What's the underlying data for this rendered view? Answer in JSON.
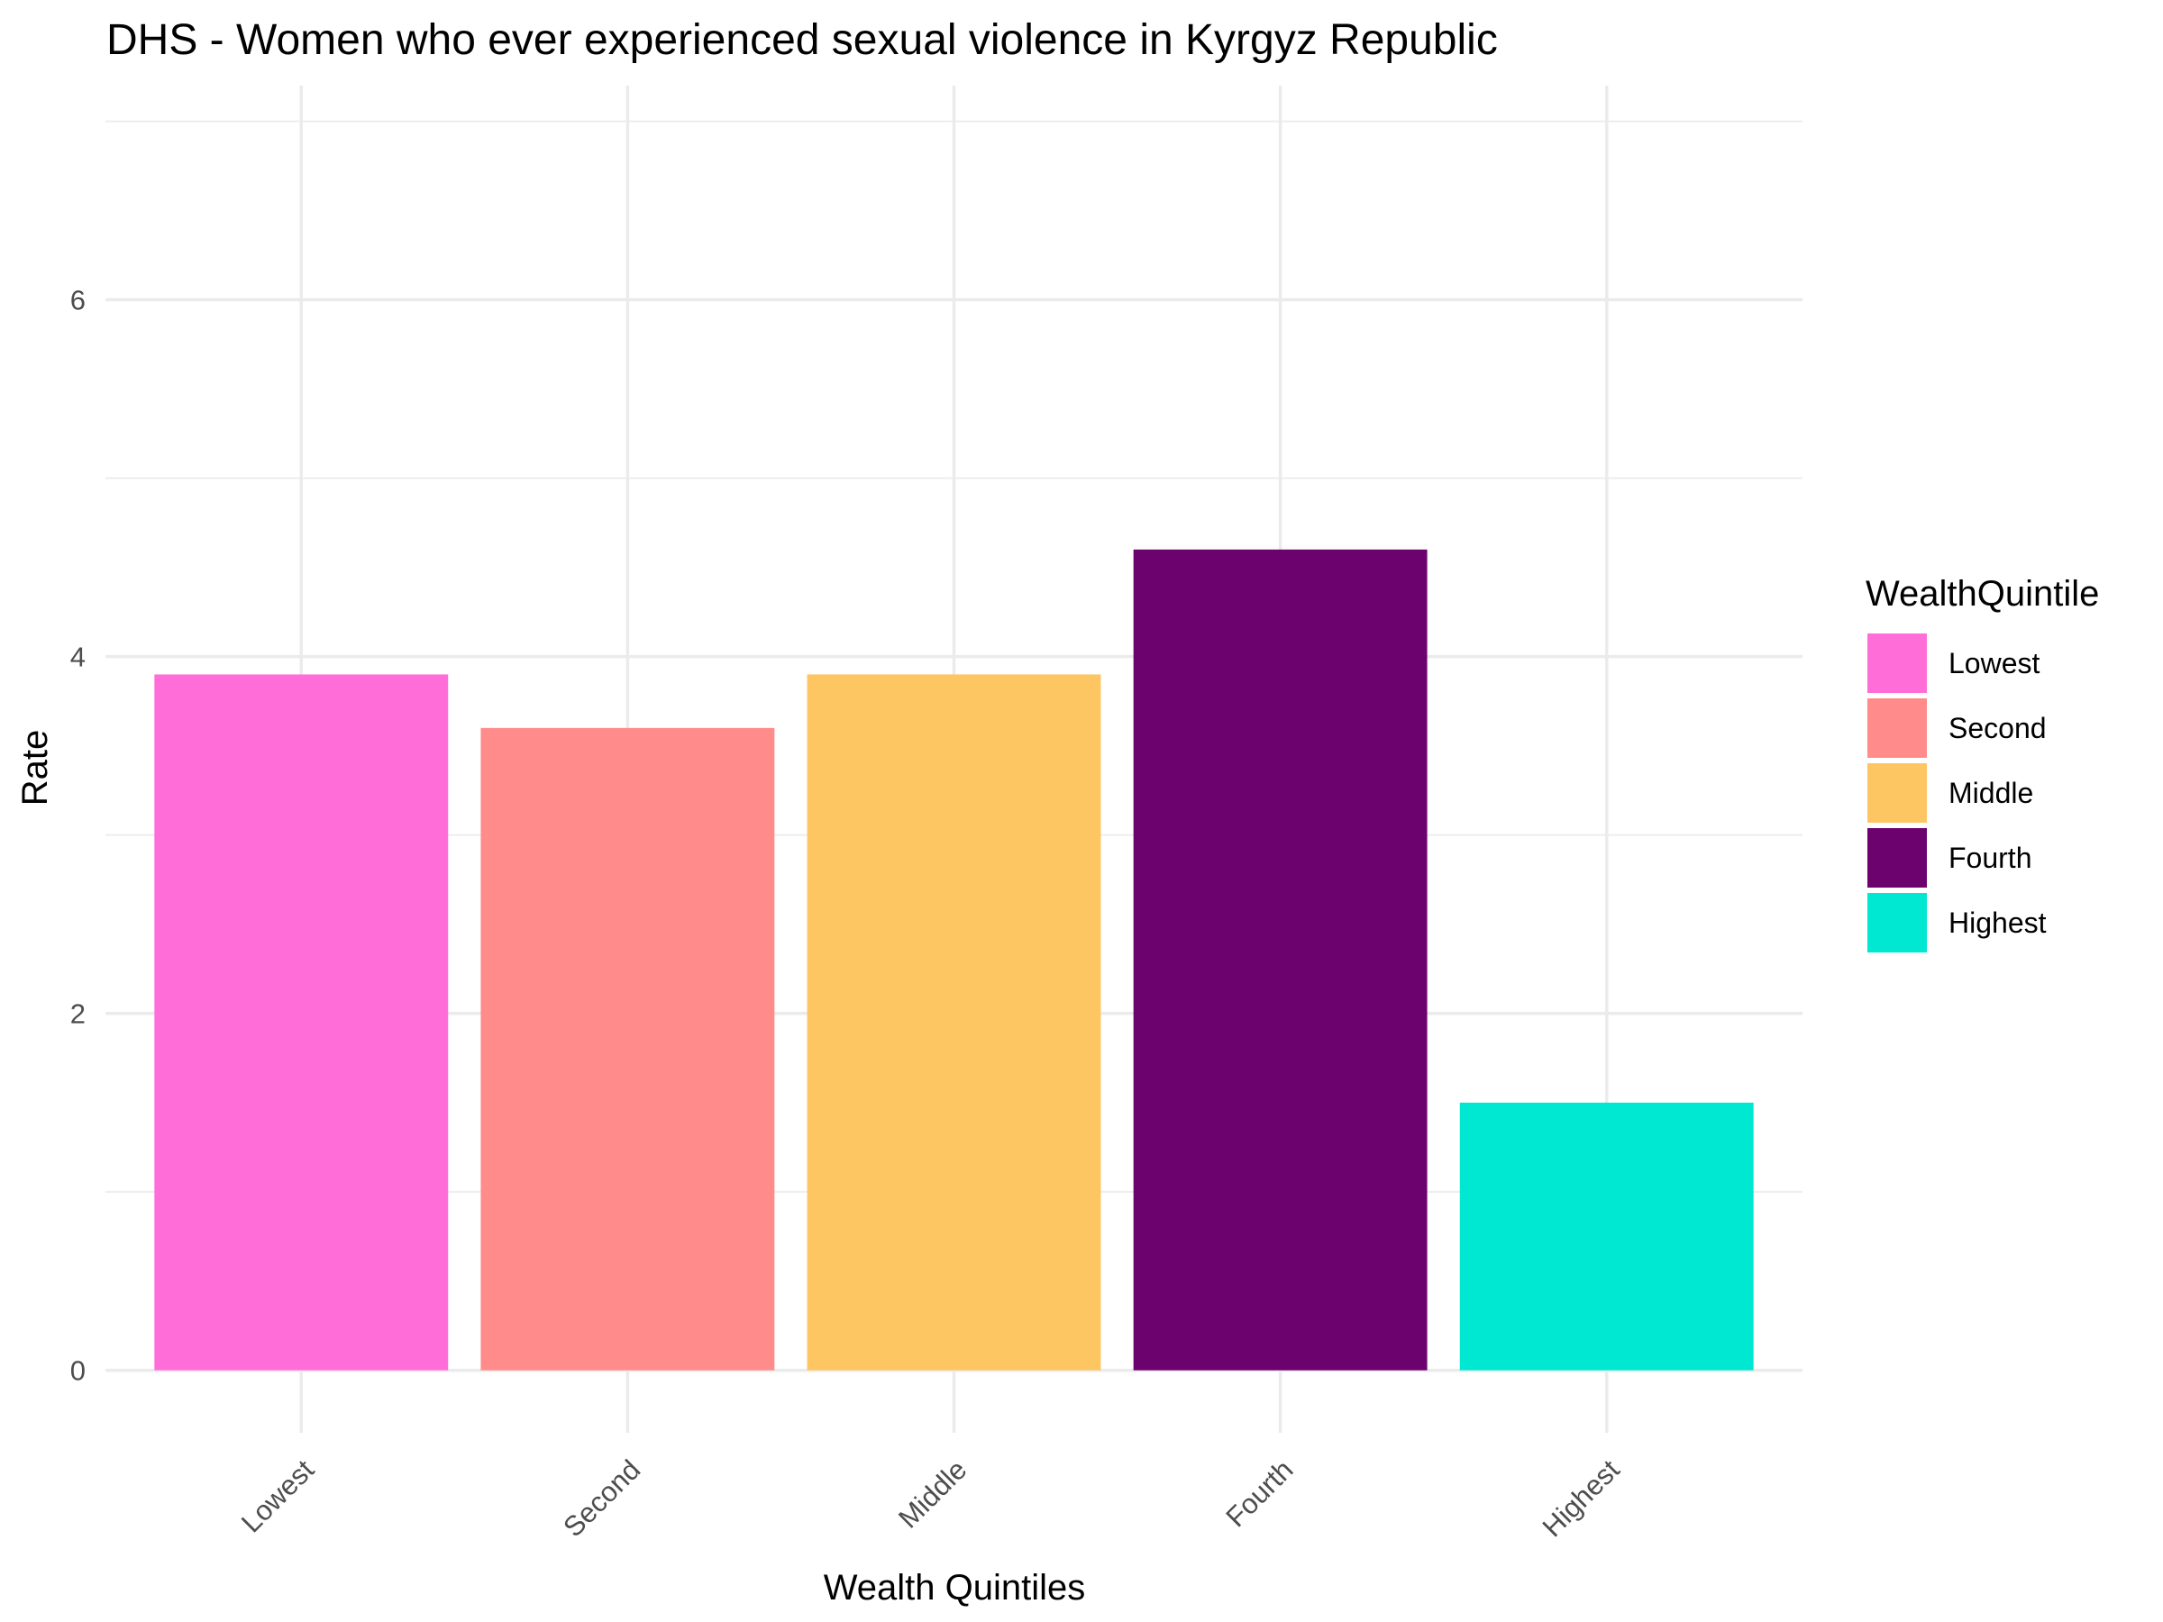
{
  "chart_data": {
    "type": "bar",
    "title": "DHS - Women who ever experienced sexual violence in Kyrgyz Republic",
    "xlabel": "Wealth Quintiles",
    "ylabel": "Rate",
    "categories": [
      "Lowest",
      "Second",
      "Middle",
      "Fourth",
      "Highest"
    ],
    "values": [
      3.9,
      3.6,
      3.9,
      4.6,
      1.5
    ],
    "colors": [
      "#ff6ed8",
      "#ff8c8a",
      "#fec662",
      "#6b026d",
      "#00e8d2"
    ],
    "ylim": [
      -0.35,
      7.2
    ],
    "yticks": [
      0,
      2,
      4,
      6
    ],
    "grid": true,
    "legend": {
      "title": "WealthQuintile",
      "position": "right",
      "entries": [
        "Lowest",
        "Second",
        "Middle",
        "Fourth",
        "Highest"
      ]
    }
  }
}
